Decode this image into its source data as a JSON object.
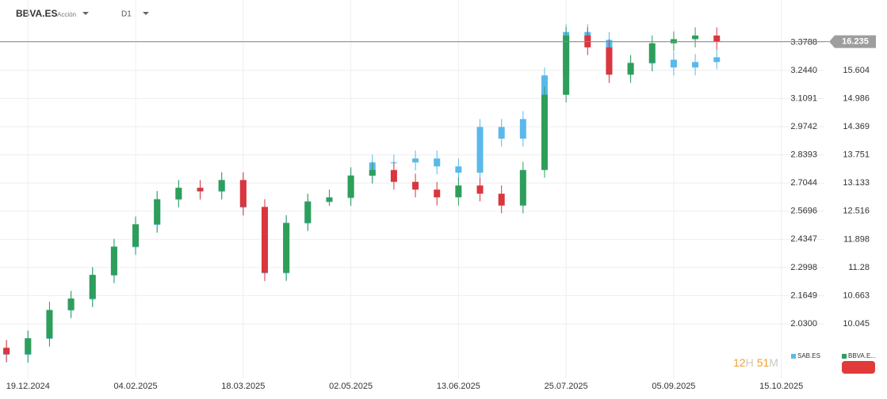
{
  "header": {
    "symbol": "BBVA.ES",
    "instrument_type": "Acción",
    "timeframe": "D1"
  },
  "chart_data": {
    "type": "candlestick",
    "xlim": [
      -0.3,
      38
    ],
    "xticks": [
      {
        "value": 1,
        "label": "19.12.2024"
      },
      {
        "value": 6,
        "label": "04.02.2025"
      },
      {
        "value": 11,
        "label": "18.03.2025"
      },
      {
        "value": 16,
        "label": "02.05.2025"
      },
      {
        "value": 21,
        "label": "13.06.2025"
      },
      {
        "value": 26,
        "label": "25.07.2025"
      },
      {
        "value": 31,
        "label": "05.09.2025"
      },
      {
        "value": 36,
        "label": "15.10.2025"
      }
    ],
    "ylim": [
      1.7686,
      3.5812
    ],
    "yticks": [
      {
        "value": 3.3788,
        "label": "3.3788"
      },
      {
        "value": 3.244,
        "label": "3.2440"
      },
      3.1091,
      2.9742,
      2.8393,
      2.7044,
      2.5696,
      2.4347,
      2.2998,
      2.1649,
      {
        "value": 2.03,
        "label": "2.0300"
      }
    ],
    "y2lim": [
      8.848,
      17.149
    ],
    "y2ticks": [
      15.604,
      14.986,
      14.369,
      13.751,
      13.133,
      12.516,
      11.898,
      11.28,
      10.663,
      10.045
    ],
    "last_price": 16.235,
    "grid": true,
    "series": [
      {
        "name": "SAB.ES",
        "color": "#5ab9ea",
        "values": [
          [
            1.913,
            1.951,
            1.844,
            1.882
          ],
          [
            1.882,
            1.996,
            1.844,
            1.958
          ],
          [
            1.958,
            2.132,
            1.92,
            2.094
          ],
          [
            2.094,
            2.185,
            2.056,
            2.147
          ],
          [
            2.147,
            2.299,
            2.109,
            2.261
          ],
          [
            2.261,
            2.435,
            2.223,
            2.397
          ],
          [
            2.397,
            2.542,
            2.359,
            2.504
          ],
          [
            2.504,
            2.663,
            2.466,
            2.625
          ],
          [
            2.625,
            2.716,
            2.587,
            2.678
          ],
          [
            2.678,
            2.716,
            2.625,
            2.663
          ],
          [
            2.663,
            2.754,
            2.625,
            2.716
          ],
          [
            2.716,
            2.754,
            2.549,
            2.587
          ],
          [
            2.587,
            2.625,
            2.234,
            2.272
          ],
          [
            2.272,
            2.549,
            2.234,
            2.511
          ],
          [
            2.511,
            2.651,
            2.473,
            2.613
          ],
          [
            2.613,
            2.67,
            2.594,
            2.632
          ],
          [
            2.632,
            2.777,
            2.594,
            2.739
          ],
          [
            2.739,
            2.841,
            2.701,
            2.803
          ],
          [
            2.803,
            2.841,
            2.765,
            2.803
          ],
          [
            2.803,
            2.86,
            2.765,
            2.822
          ],
          [
            2.822,
            2.86,
            2.746,
            2.784
          ],
          [
            2.784,
            2.822,
            2.716,
            2.754
          ],
          [
            2.754,
            3.011,
            2.716,
            2.973
          ],
          [
            2.973,
            3.011,
            2.879,
            2.917
          ],
          [
            2.917,
            3.049,
            2.879,
            3.011
          ],
          [
            3.011,
            3.258,
            2.973,
            3.22
          ],
          [
            3.22,
            3.466,
            3.182,
            3.428
          ],
          [
            3.428,
            3.466,
            3.352,
            3.39
          ],
          [
            3.39,
            3.428,
            3.201,
            3.239
          ],
          [
            3.239,
            3.315,
            3.201,
            3.277
          ],
          [
            3.277,
            3.333,
            3.239,
            3.295
          ],
          [
            3.295,
            3.333,
            3.22,
            3.258
          ],
          [
            3.258,
            3.322,
            3.22,
            3.284
          ],
          [
            3.284,
            3.345,
            3.25,
            3.307
          ]
        ]
      },
      {
        "name": "BBVA.E...",
        "color": "#2e9e5b",
        "down_color": "#d9363e",
        "axis": "y2",
        "values": [
          [
            9.52,
            9.69,
            9.21,
            9.38
          ],
          [
            9.38,
            9.9,
            9.2,
            9.73
          ],
          [
            9.73,
            10.53,
            9.55,
            10.35
          ],
          [
            10.35,
            10.77,
            10.18,
            10.6
          ],
          [
            10.6,
            11.29,
            10.42,
            11.12
          ],
          [
            11.12,
            11.91,
            10.95,
            11.74
          ],
          [
            11.74,
            12.4,
            11.57,
            12.23
          ],
          [
            12.23,
            12.96,
            12.05,
            12.78
          ],
          [
            12.78,
            13.2,
            12.61,
            13.03
          ],
          [
            13.03,
            13.2,
            12.78,
            12.96
          ],
          [
            12.96,
            13.37,
            12.78,
            13.2
          ],
          [
            13.2,
            13.37,
            12.43,
            12.61
          ],
          [
            12.61,
            12.78,
            10.99,
            11.17
          ],
          [
            11.17,
            12.43,
            11.0,
            12.26
          ],
          [
            12.26,
            12.9,
            12.09,
            12.73
          ],
          [
            12.73,
            12.99,
            12.64,
            12.82
          ],
          [
            12.82,
            13.48,
            12.64,
            13.3
          ],
          [
            13.3,
            13.6,
            13.13,
            13.42
          ],
          [
            13.42,
            13.6,
            12.99,
            13.16
          ],
          [
            13.16,
            13.34,
            12.82,
            12.99
          ],
          [
            12.99,
            13.16,
            12.64,
            12.82
          ],
          [
            12.82,
            13.25,
            12.64,
            13.08
          ],
          [
            13.08,
            13.25,
            12.73,
            12.9
          ],
          [
            12.9,
            13.08,
            12.47,
            12.64
          ],
          [
            12.64,
            13.6,
            12.47,
            13.42
          ],
          [
            13.42,
            15.25,
            13.25,
            15.07
          ],
          [
            15.07,
            16.55,
            14.9,
            16.37
          ],
          [
            16.37,
            16.55,
            15.94,
            16.11
          ],
          [
            16.11,
            16.29,
            15.33,
            15.51
          ],
          [
            15.51,
            15.94,
            15.33,
            15.77
          ],
          [
            15.77,
            16.37,
            15.59,
            16.2
          ],
          [
            16.2,
            16.46,
            16.03,
            16.29
          ],
          [
            16.29,
            16.55,
            16.11,
            16.37
          ],
          [
            16.37,
            16.55,
            16.06,
            16.235
          ]
        ]
      }
    ],
    "countdown": {
      "hours": "12",
      "hours_unit": "H",
      "minutes": "51",
      "minutes_unit": "M"
    }
  }
}
